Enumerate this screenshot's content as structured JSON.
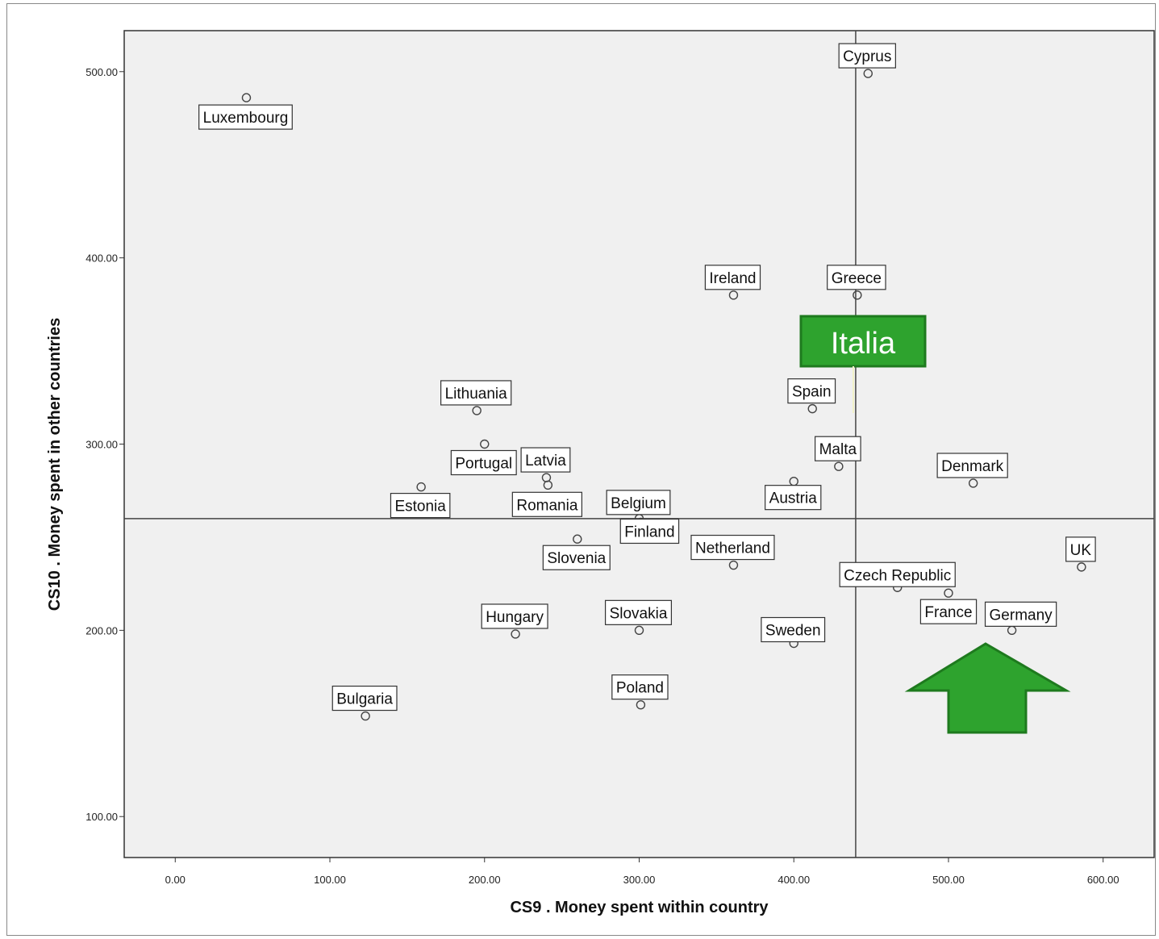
{
  "chart_data": {
    "type": "scatter",
    "xlabel": "CS9 . Money spent within country",
    "ylabel": "CS10 . Money spent in other countries",
    "xlim": [
      -33,
      633
    ],
    "ylim": [
      78,
      522
    ],
    "x_ticks": [
      0,
      100,
      200,
      300,
      400,
      500,
      600
    ],
    "y_ticks": [
      100,
      200,
      300,
      400,
      500
    ],
    "x_tick_labels": [
      "0.00",
      "100.00",
      "200.00",
      "300.00",
      "400.00",
      "500.00",
      "600.00"
    ],
    "y_tick_labels": [
      "100.00",
      "200.00",
      "300.00",
      "400.00",
      "500.00"
    ],
    "reference_lines": {
      "x": 440,
      "y": 260
    },
    "grid": false,
    "point_color": "#444444",
    "plot_background": "#f0f0f0",
    "points": [
      {
        "label": "Luxembourg",
        "x": 46,
        "y": 486
      },
      {
        "label": "Cyprus",
        "x": 448,
        "y": 499
      },
      {
        "label": "Ireland",
        "x": 361,
        "y": 380
      },
      {
        "label": "Greece",
        "x": 441,
        "y": 380
      },
      {
        "label": "Lithuania",
        "x": 195,
        "y": 318
      },
      {
        "label": "Spain",
        "x": 412,
        "y": 319
      },
      {
        "label": "Portugal",
        "x": 200,
        "y": 300
      },
      {
        "label": "Latvia",
        "x": 240,
        "y": 282
      },
      {
        "label": "Romania",
        "x": 241,
        "y": 278
      },
      {
        "label": "Malta",
        "x": 429,
        "y": 288
      },
      {
        "label": "Denmark",
        "x": 516,
        "y": 279
      },
      {
        "label": "Estonia",
        "x": 159,
        "y": 277
      },
      {
        "label": "Austria",
        "x": 400,
        "y": 280
      },
      {
        "label": "Belgium",
        "x": 300,
        "y": 260
      },
      {
        "label": "Finland",
        "x": 301,
        "y": 258
      },
      {
        "label": "Slovenia",
        "x": 260,
        "y": 249
      },
      {
        "label": "Netherland",
        "x": 361,
        "y": 235
      },
      {
        "label": "UK",
        "x": 586,
        "y": 234
      },
      {
        "label": "Czech Republic",
        "x": 467,
        "y": 223
      },
      {
        "label": "France",
        "x": 500,
        "y": 220
      },
      {
        "label": "Germany",
        "x": 541,
        "y": 200
      },
      {
        "label": "Hungary",
        "x": 220,
        "y": 198
      },
      {
        "label": "Slovakia",
        "x": 300,
        "y": 200
      },
      {
        "label": "Sweden",
        "x": 400,
        "y": 193
      },
      {
        "label": "Poland",
        "x": 301,
        "y": 160
      },
      {
        "label": "Bulgaria",
        "x": 123,
        "y": 154
      }
    ],
    "annotations": [
      {
        "text": "Italia",
        "color": "#2ea32e"
      }
    ]
  }
}
